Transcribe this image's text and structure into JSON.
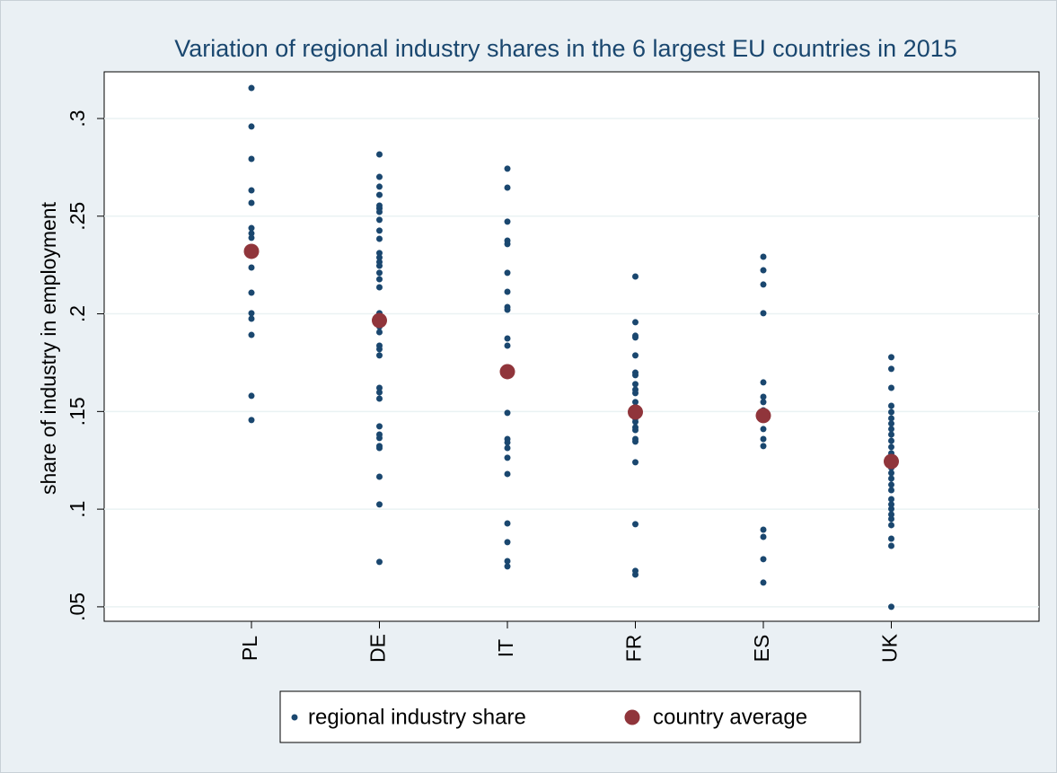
{
  "chart_data": {
    "type": "scatter",
    "title": "Variation of regional industry shares in the 6 largest EU countries in 2015",
    "y_label": "share of industry in employment",
    "categories": [
      "PL",
      "DE",
      "IT",
      "FR",
      "ES",
      "UK"
    ],
    "ylim": [
      0.0426,
      0.3239
    ],
    "yticks": [
      {
        "value": 0.05,
        "label": ".05"
      },
      {
        "value": 0.1,
        "label": ".1"
      },
      {
        "value": 0.15,
        "label": ".15"
      },
      {
        "value": 0.2,
        "label": ".2"
      },
      {
        "value": 0.25,
        "label": ".25"
      },
      {
        "value": 0.3,
        "label": ".3"
      }
    ],
    "grid": true,
    "legend": "bottom",
    "series": [
      {
        "name": "regional industry share",
        "color": "#1a476f",
        "values": [
          [
            0.3156,
            0.2959,
            0.2793,
            0.2632,
            0.2568,
            0.2439,
            0.2412,
            0.2389,
            0.2237,
            0.2108,
            0.2003,
            0.1975,
            0.1892,
            0.158,
            0.1456
          ],
          [
            0.2816,
            0.2701,
            0.2651,
            0.2609,
            0.2554,
            0.254,
            0.2522,
            0.2481,
            0.2426,
            0.2384,
            0.2311,
            0.2288,
            0.2265,
            0.2246,
            0.221,
            0.2177,
            0.2136,
            0.2003,
            0.1984,
            0.1966,
            0.1934,
            0.1906,
            0.1837,
            0.1819,
            0.1787,
            0.1621,
            0.1598,
            0.1566,
            0.1424,
            0.1382,
            0.1364,
            0.1323,
            0.1313,
            0.1166,
            0.1024,
            0.073
          ],
          [
            0.2743,
            0.2646,
            0.2472,
            0.2375,
            0.2357,
            0.221,
            0.2113,
            0.2035,
            0.2021,
            0.1874,
            0.1837,
            0.1493,
            0.1359,
            0.1341,
            0.1313,
            0.1263,
            0.118,
            0.0927,
            0.0831,
            0.0734,
            0.0707
          ],
          [
            0.2191,
            0.1957,
            0.1888,
            0.1879,
            0.1787,
            0.1699,
            0.1686,
            0.164,
            0.1612,
            0.1594,
            0.1548,
            0.1502,
            0.1465,
            0.1447,
            0.1419,
            0.1405,
            0.1359,
            0.1346,
            0.124,
            0.0923,
            0.0684,
            0.0665
          ],
          [
            0.2292,
            0.2223,
            0.215,
            0.2003,
            0.1649,
            0.1575,
            0.1548,
            0.1506,
            0.1465,
            0.141,
            0.1359,
            0.1323,
            0.0895,
            0.0858,
            0.0744,
            0.0624
          ],
          [
            0.1778,
            0.1718,
            0.1621,
            0.1529,
            0.1497,
            0.1465,
            0.1438,
            0.141,
            0.1382,
            0.135,
            0.1318,
            0.1286,
            0.1249,
            0.1212,
            0.1185,
            0.1157,
            0.1125,
            0.1097,
            0.1051,
            0.1024,
            0.1001,
            0.0973,
            0.095,
            0.0918,
            0.0849,
            0.0812,
            0.05
          ]
        ]
      },
      {
        "name": "country average",
        "color": "#90353b",
        "values": [
          0.232,
          0.1966,
          0.1704,
          0.1497,
          0.1479,
          0.1244
        ]
      }
    ]
  }
}
